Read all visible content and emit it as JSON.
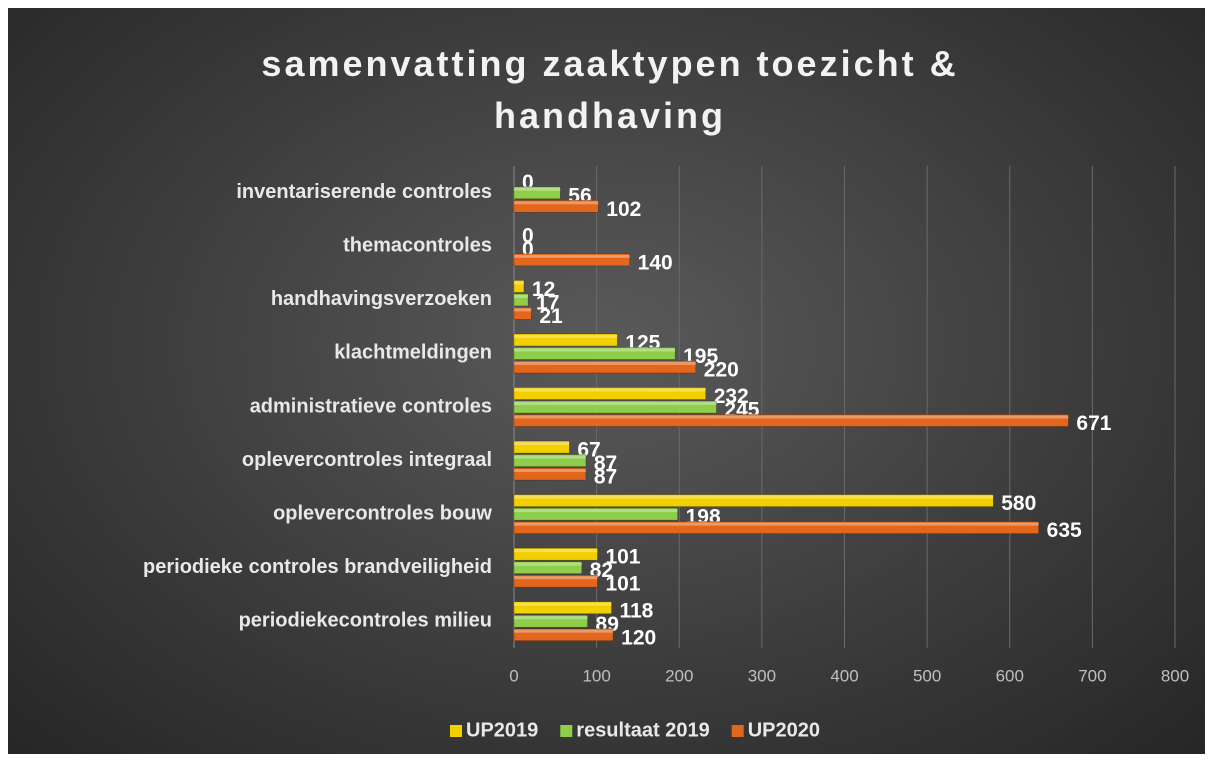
{
  "chart_data": {
    "type": "bar",
    "orientation": "horizontal",
    "title": "samenvatting zaaktypen toezicht & handhaving",
    "categories": [
      "inventariserende controles",
      "themacontroles",
      "handhavingsverzoeken",
      "klachtmeldingen",
      "administratieve controles",
      "oplevercontroles integraal",
      "oplevercontroles bouw",
      "periodieke controles brandveiligheid",
      "periodiekecontroles milieu"
    ],
    "series": [
      {
        "name": "UP2019",
        "color": "#f2d000",
        "values": [
          0,
          0,
          12,
          125,
          232,
          67,
          580,
          101,
          118
        ]
      },
      {
        "name": "resultaat 2019",
        "color": "#8fce4a",
        "values": [
          56,
          0,
          17,
          195,
          245,
          87,
          198,
          82,
          89
        ]
      },
      {
        "name": "UP2020",
        "color": "#e2661c",
        "values": [
          102,
          140,
          21,
          220,
          671,
          87,
          635,
          101,
          120
        ]
      }
    ],
    "xlim": [
      0,
      800
    ],
    "xticks": [
      0,
      100,
      200,
      300,
      400,
      500,
      600,
      700,
      800
    ],
    "grid": true,
    "legend": "bottom"
  }
}
